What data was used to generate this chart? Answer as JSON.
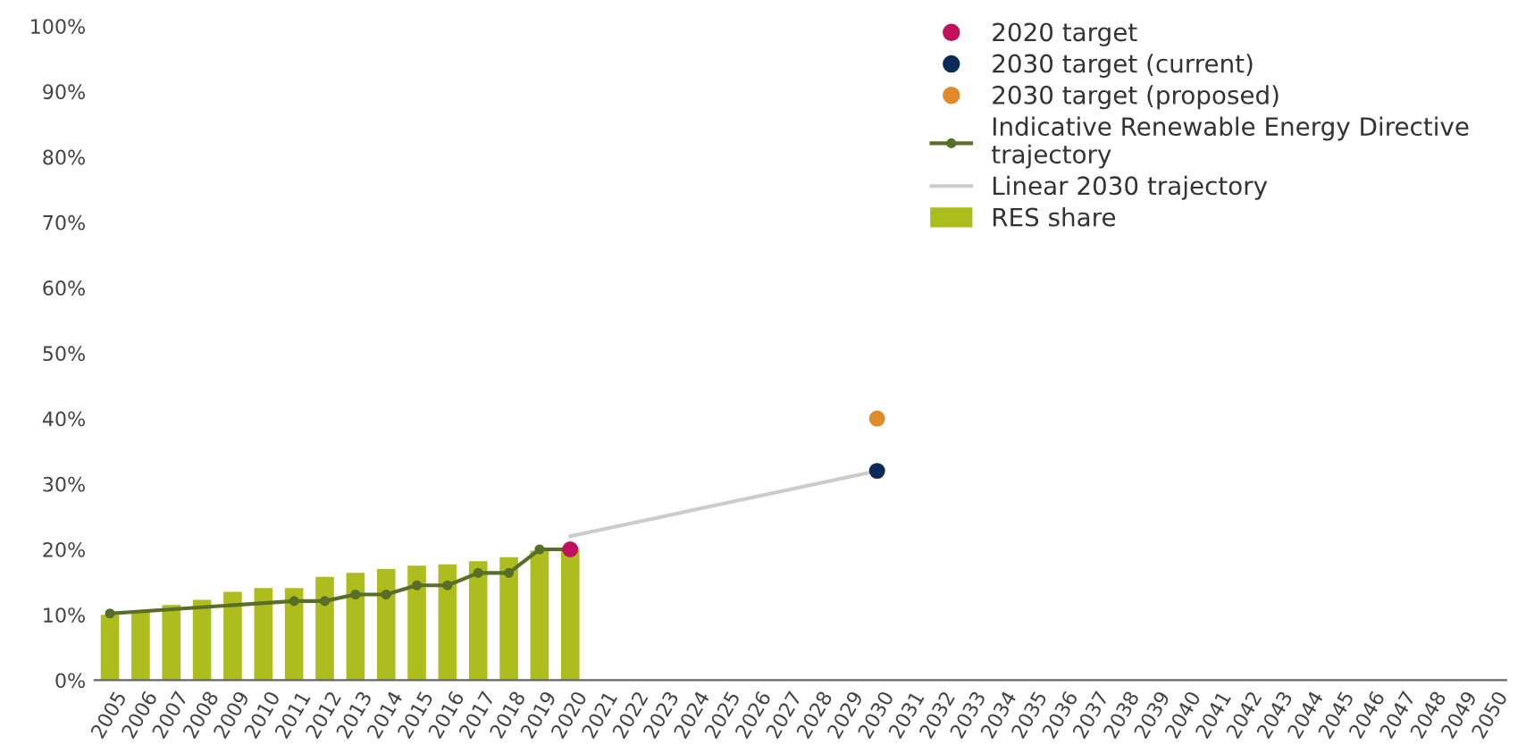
{
  "chart_data": {
    "type": "bar",
    "xlim": [
      2004.5,
      2050.5
    ],
    "xticks": [
      2005,
      2006,
      2007,
      2008,
      2009,
      2010,
      2011,
      2012,
      2013,
      2014,
      2015,
      2016,
      2017,
      2018,
      2019,
      2020,
      2021,
      2022,
      2023,
      2024,
      2025,
      2026,
      2027,
      2028,
      2029,
      2030,
      2031,
      2032,
      2033,
      2034,
      2035,
      2036,
      2037,
      2038,
      2039,
      2040,
      2041,
      2042,
      2043,
      2044,
      2045,
      2046,
      2047,
      2048,
      2049,
      2050
    ],
    "ylim": [
      0,
      100
    ],
    "yticks": [
      {
        "value": 0,
        "label": "0%"
      },
      {
        "value": 10,
        "label": "10%"
      },
      {
        "value": 20,
        "label": "20%"
      },
      {
        "value": 30,
        "label": "30%"
      },
      {
        "value": 40,
        "label": "40%"
      },
      {
        "value": 50,
        "label": "50%"
      },
      {
        "value": 60,
        "label": "60%"
      },
      {
        "value": 70,
        "label": "70%"
      },
      {
        "value": 80,
        "label": "80%"
      },
      {
        "value": 90,
        "label": "90%"
      },
      {
        "value": 100,
        "label": "100%"
      }
    ],
    "grid": false,
    "legend": "top right",
    "series": [
      {
        "name": "2020 target",
        "type": "scatter",
        "color": "#c0105e",
        "marker": "circle",
        "x": [
          2020
        ],
        "values": [
          20
        ]
      },
      {
        "name": "2030 target (current)",
        "type": "scatter",
        "color": "#0b2a5a",
        "marker": "circle",
        "x": [
          2030
        ],
        "values": [
          32
        ]
      },
      {
        "name": "2030 target (proposed)",
        "type": "scatter",
        "color": "#e08a2a",
        "marker": "circle",
        "x": [
          2030
        ],
        "values": [
          40
        ]
      },
      {
        "name": "Indicative Renewable Energy Directive trajectory",
        "type": "line",
        "color": "#5a6e2a",
        "marker": "circle",
        "line_style": "solid",
        "x": [
          2005,
          2011,
          2012,
          2013,
          2014,
          2015,
          2016,
          2017,
          2018,
          2019,
          2020
        ],
        "values": [
          10.2,
          12.1,
          12.1,
          13.1,
          13.1,
          14.5,
          14.5,
          16.4,
          16.4,
          20,
          20
        ]
      },
      {
        "name": "Linear 2030 trajectory",
        "type": "line",
        "color": "#cccccc",
        "marker": "none",
        "line_style": "solid",
        "x": [
          2020,
          2030
        ],
        "values": [
          22,
          32
        ]
      },
      {
        "name": "RES share",
        "color": "#aebd1e",
        "x": [
          2005,
          2006,
          2007,
          2008,
          2009,
          2010,
          2011,
          2012,
          2013,
          2014,
          2015,
          2016,
          2017,
          2018,
          2019,
          2020
        ],
        "values": [
          10.0,
          10.5,
          11.5,
          12.3,
          13.5,
          14.1,
          14.1,
          15.8,
          16.4,
          17.0,
          17.5,
          17.7,
          18.2,
          18.8,
          19.8,
          20.0
        ]
      }
    ]
  }
}
